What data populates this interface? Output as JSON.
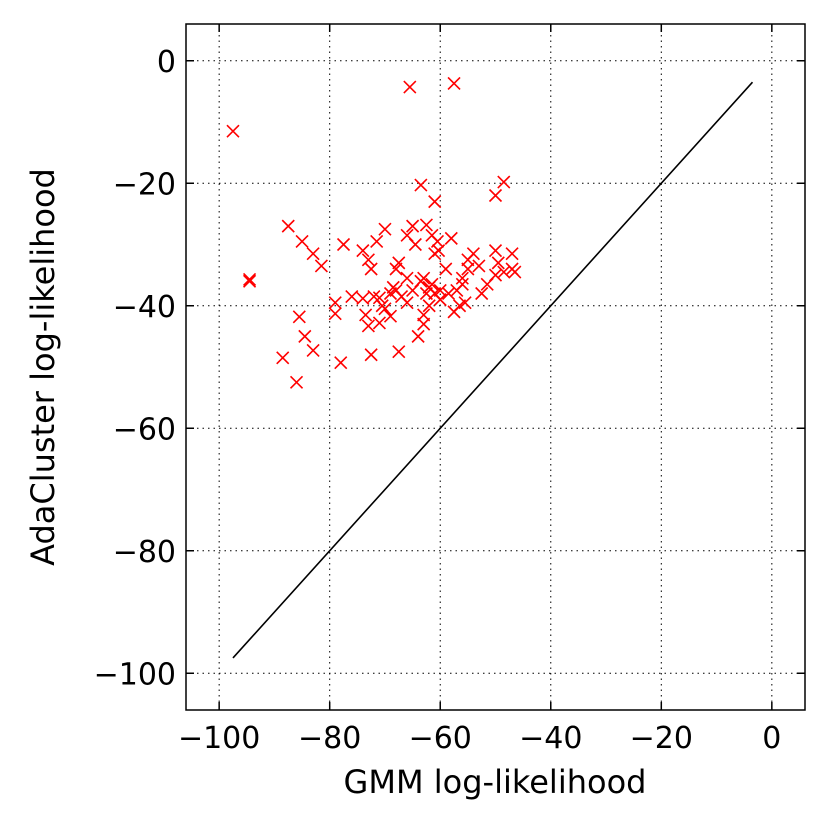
{
  "chart_data": {
    "type": "scatter",
    "title": "",
    "xlabel": "GMM log-likelihood",
    "ylabel": "AdaCluster log-likelihood",
    "xlim": [
      -106,
      6
    ],
    "ylim": [
      -106,
      6
    ],
    "xticks": [
      -100,
      -80,
      -60,
      -40,
      -20,
      0
    ],
    "yticks": [
      -100,
      -80,
      -60,
      -40,
      -20,
      0
    ],
    "xtick_labels": [
      "−100",
      "−80",
      "−60",
      "−40",
      "−20",
      "0"
    ],
    "ytick_labels": [
      "−100",
      "−80",
      "−60",
      "−40",
      "−20",
      "0"
    ],
    "grid": true,
    "marker": "x",
    "marker_color": "#ff0000",
    "reference_line": {
      "x": [
        -97.5,
        -3.5
      ],
      "y": [
        -97.5,
        -3.5
      ],
      "color": "#000000"
    },
    "points": [
      [
        -97.5,
        -11.5
      ],
      [
        -65.5,
        -4.3
      ],
      [
        -57.5,
        -3.7
      ],
      [
        -94.5,
        -35.7
      ],
      [
        -94.5,
        -36.0
      ],
      [
        -88.5,
        -48.5
      ],
      [
        -86,
        -52.5
      ],
      [
        -85.5,
        -41.8
      ],
      [
        -84.5,
        -45
      ],
      [
        -83,
        -47.3
      ],
      [
        -87.5,
        -27
      ],
      [
        -85,
        -29.5
      ],
      [
        -83,
        -31.5
      ],
      [
        -81.5,
        -33.5
      ],
      [
        -79,
        -39.5
      ],
      [
        -79,
        -41.3
      ],
      [
        -78,
        -49.3
      ],
      [
        -77.5,
        -30
      ],
      [
        -76,
        -38.5
      ],
      [
        -74,
        -38.8
      ],
      [
        -73.5,
        -41.5
      ],
      [
        -73,
        -43.3
      ],
      [
        -74,
        -31
      ],
      [
        -73,
        -32.5
      ],
      [
        -72.5,
        -34
      ],
      [
        -71.5,
        -29.5
      ],
      [
        -70,
        -27.5
      ],
      [
        -72.5,
        -48
      ],
      [
        -67.5,
        -47.5
      ],
      [
        -72,
        -38.5
      ],
      [
        -71,
        -38.7
      ],
      [
        -70.5,
        -40
      ],
      [
        -70,
        -40.5
      ],
      [
        -69,
        -38
      ],
      [
        -68.5,
        -37
      ],
      [
        -68,
        -37.5
      ],
      [
        -67,
        -38.5
      ],
      [
        -66,
        -39.5
      ],
      [
        -69,
        -41.7
      ],
      [
        -71,
        -42.8
      ],
      [
        -68,
        -34
      ],
      [
        -67.5,
        -33
      ],
      [
        -66,
        -35.5
      ],
      [
        -65,
        -37.5
      ],
      [
        -66,
        -28.5
      ],
      [
        -65,
        -27
      ],
      [
        -64.5,
        -30
      ],
      [
        -63.5,
        -20.3
      ],
      [
        -61,
        -23
      ],
      [
        -62.5,
        -26.8
      ],
      [
        -61.5,
        -28.5
      ],
      [
        -60.5,
        -29.5
      ],
      [
        -60.3,
        -31
      ],
      [
        -61,
        -31.5
      ],
      [
        -64,
        -45
      ],
      [
        -63,
        -43
      ],
      [
        -63,
        -41.5
      ],
      [
        -62,
        -40
      ],
      [
        -63.5,
        -36
      ],
      [
        -63,
        -35.5
      ],
      [
        -62.5,
        -38
      ],
      [
        -62,
        -37
      ],
      [
        -61,
        -38
      ],
      [
        -60,
        -39
      ],
      [
        -61.5,
        -36.5
      ],
      [
        -60,
        -37.5
      ],
      [
        -58,
        -29
      ],
      [
        -59,
        -34
      ],
      [
        -58.5,
        -38
      ],
      [
        -57,
        -37.5
      ],
      [
        -57.5,
        -41
      ],
      [
        -56.5,
        -40
      ],
      [
        -56,
        -36.5
      ],
      [
        -55.5,
        -39.5
      ],
      [
        -56,
        -35.5
      ],
      [
        -55,
        -34
      ],
      [
        -55,
        -32.5
      ],
      [
        -54,
        -31.5
      ],
      [
        -53,
        -33.5
      ],
      [
        -52.5,
        -38
      ],
      [
        -51.5,
        -36.5
      ],
      [
        -50,
        -35
      ],
      [
        -50,
        -31
      ],
      [
        -49.5,
        -33
      ],
      [
        -48.5,
        -34.5
      ],
      [
        -47,
        -34
      ],
      [
        -46.5,
        -34.5
      ],
      [
        -47,
        -31.5
      ],
      [
        -48.5,
        -19.8
      ],
      [
        -50,
        -22
      ]
    ]
  }
}
